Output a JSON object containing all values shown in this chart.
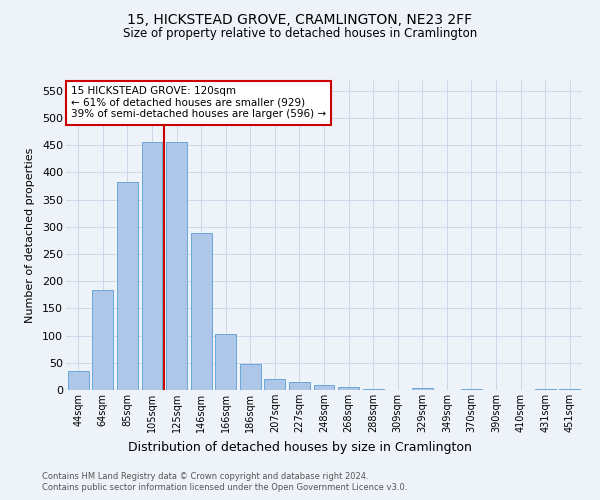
{
  "title1": "15, HICKSTEAD GROVE, CRAMLINGTON, NE23 2FF",
  "title2": "Size of property relative to detached houses in Cramlington",
  "xlabel": "Distribution of detached houses by size in Cramlington",
  "ylabel": "Number of detached properties",
  "categories": [
    "44sqm",
    "64sqm",
    "85sqm",
    "105sqm",
    "125sqm",
    "146sqm",
    "166sqm",
    "186sqm",
    "207sqm",
    "227sqm",
    "248sqm",
    "268sqm",
    "288sqm",
    "309sqm",
    "329sqm",
    "349sqm",
    "370sqm",
    "390sqm",
    "410sqm",
    "431sqm",
    "451sqm"
  ],
  "values": [
    35,
    184,
    383,
    456,
    456,
    288,
    103,
    48,
    20,
    15,
    10,
    6,
    1,
    0,
    4,
    0,
    1,
    0,
    0,
    1,
    1
  ],
  "bar_color": "#aec6e8",
  "bar_edge_color": "#5a9fd4",
  "vline_x": 3.5,
  "vline_color": "#cc0000",
  "annotation_text": "15 HICKSTEAD GROVE: 120sqm\n← 61% of detached houses are smaller (929)\n39% of semi-detached houses are larger (596) →",
  "annotation_box_color": "#ffffff",
  "annotation_box_edge_color": "#cc0000",
  "ylim": [
    0,
    570
  ],
  "yticks": [
    0,
    50,
    100,
    150,
    200,
    250,
    300,
    350,
    400,
    450,
    500,
    550
  ],
  "footer1": "Contains HM Land Registry data © Crown copyright and database right 2024.",
  "footer2": "Contains public sector information licensed under the Open Government Licence v3.0.",
  "background_color": "#eef2f9",
  "grid_color": "#c8d4e8"
}
